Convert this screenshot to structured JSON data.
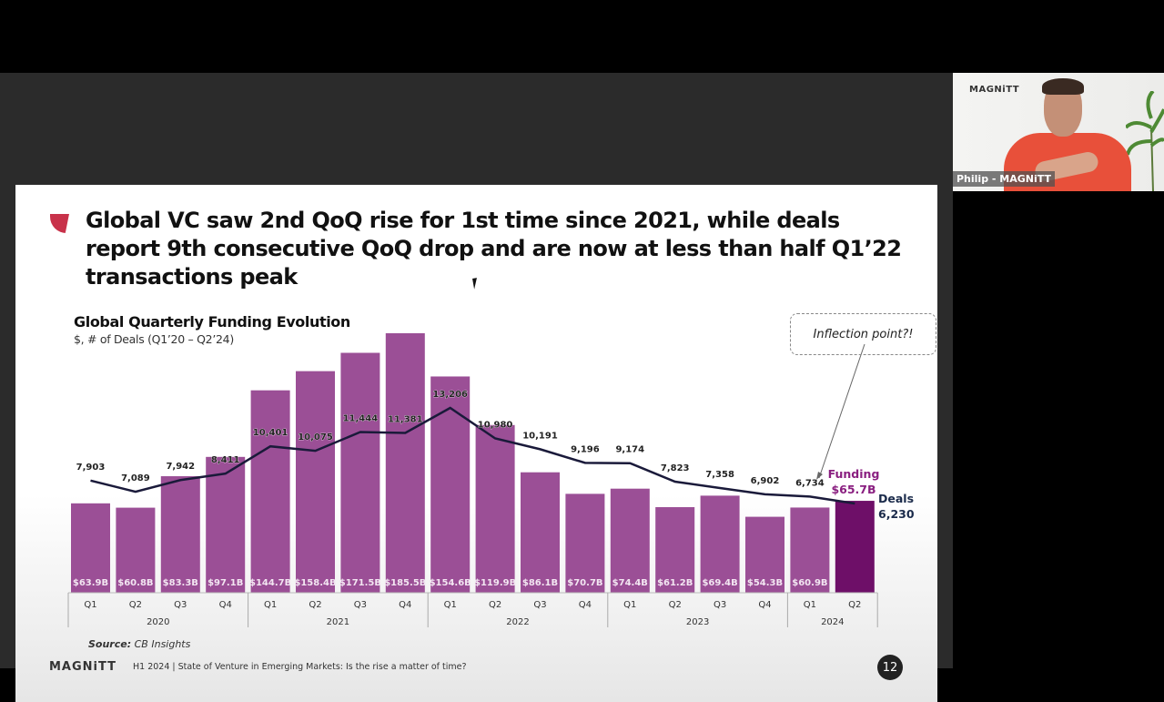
{
  "slide": {
    "headline": "Global VC saw 2nd QoQ rise for 1st time since 2021, while deals report 9th consecutive QoQ drop and are now at less than half Q1’22 transactions peak",
    "callout": "Inflection point?!",
    "source_label": "Source:",
    "source_value": "CB Insights",
    "footer_logo": "MAGNiTT",
    "footer_text": "H1 2024 | State of Venture in Emerging Markets: Is the rise a matter of time?",
    "page_number": "12",
    "colors": {
      "bar": "#9b4f96",
      "bar_highlight": "#6e0f68",
      "line": "#1a1a3a",
      "accent": "#c8324a",
      "funding_label": "#8a1f80"
    }
  },
  "video": {
    "logo": "MAGNiTT",
    "participant_label": "Philip - MAGNiTT"
  },
  "chart_data": {
    "type": "bar",
    "title": "Global Quarterly Funding Evolution",
    "subtitle": "$, # of Deals (Q1’20 – Q2’24)",
    "categories": [
      "Q1",
      "Q2",
      "Q3",
      "Q4",
      "Q1",
      "Q2",
      "Q3",
      "Q4",
      "Q1",
      "Q2",
      "Q3",
      "Q4",
      "Q1",
      "Q2",
      "Q3",
      "Q4",
      "Q1",
      "Q2"
    ],
    "years": [
      {
        "label": "2020",
        "count": 4
      },
      {
        "label": "2021",
        "count": 4
      },
      {
        "label": "2022",
        "count": 4
      },
      {
        "label": "2023",
        "count": 4
      },
      {
        "label": "2024",
        "count": 2
      }
    ],
    "series": [
      {
        "name": "Funding ($B)",
        "type": "bar",
        "values": [
          63.9,
          60.8,
          83.3,
          97.1,
          144.7,
          158.4,
          171.5,
          185.5,
          154.6,
          119.9,
          86.1,
          70.7,
          74.4,
          61.2,
          69.4,
          54.3,
          60.9,
          65.7
        ],
        "labels": [
          "$63.9B",
          "$60.8B",
          "$83.3B",
          "$97.1B",
          "$144.7B",
          "$158.4B",
          "$171.5B",
          "$185.5B",
          "$154.6B",
          "$119.9B",
          "$86.1B",
          "$70.7B",
          "$74.4B",
          "$61.2B",
          "$69.4B",
          "$54.3B",
          "$60.9B",
          ""
        ]
      },
      {
        "name": "Deals",
        "type": "line",
        "values": [
          7903,
          7089,
          7942,
          8411,
          10401,
          10075,
          11444,
          11381,
          13206,
          10980,
          10191,
          9196,
          9174,
          7823,
          7358,
          6902,
          6734,
          6230
        ],
        "labels": [
          "7,903",
          "7,089",
          "7,942",
          "8,411",
          "10,401",
          "10,075",
          "11,444",
          "11,381",
          "13,206",
          "10,980",
          "10,191",
          "9,196",
          "9,174",
          "7,823",
          "7,358",
          "6,902",
          "6,734",
          ""
        ]
      }
    ],
    "end_labels": {
      "funding_title": "Funding",
      "funding_value": "$65.7B",
      "deals_title": "Deals",
      "deals_value": "6,230"
    },
    "highlight_index": 17,
    "ylim_funding": [
      0,
      200
    ],
    "xlabel": "",
    "ylabel": "",
    "grid": false,
    "legend": "none"
  }
}
